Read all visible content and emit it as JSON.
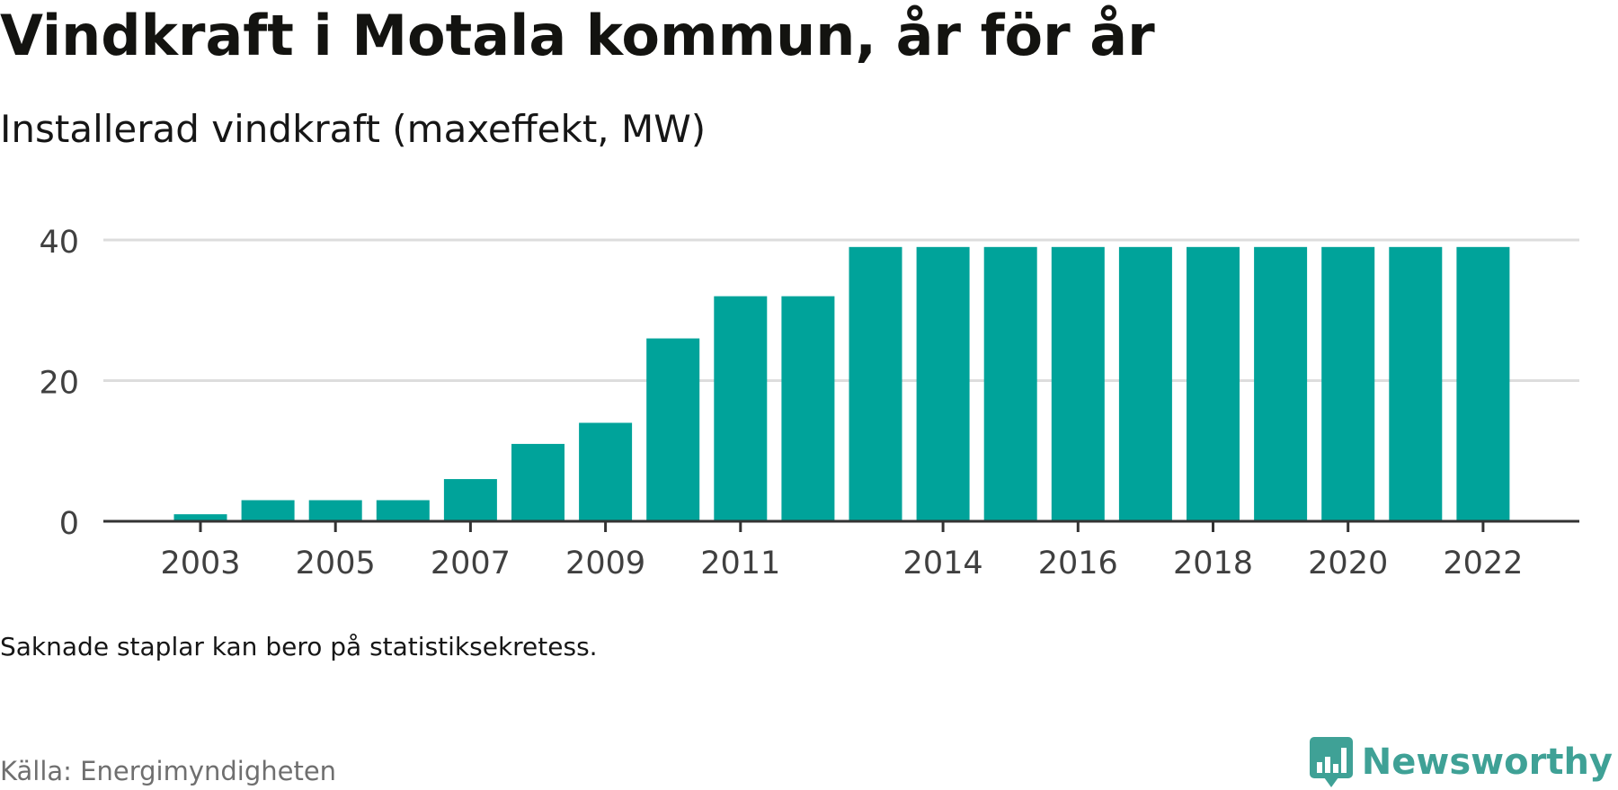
{
  "header": {
    "title": "Vindkraft i Motala kommun, år för år",
    "subtitle": "Installerad vindkraft (maxeffekt, MW)"
  },
  "footer": {
    "note": "Saknade staplar kan bero på statistiksekretess.",
    "source": "Källa: Energimyndigheten",
    "brand": "Newsworthy",
    "brand_icon": "chart-bubble-icon"
  },
  "colors": {
    "bar": "#00a39a",
    "gridline": "#dddddd",
    "axis": "#333333",
    "brand": "#3fa196"
  },
  "chart_data": {
    "type": "bar",
    "categories": [
      "2003",
      "2004",
      "2005",
      "2006",
      "2007",
      "2008",
      "2009",
      "2010",
      "2011",
      "2012",
      "2013",
      "2014",
      "2015",
      "2016",
      "2017",
      "2018",
      "2019",
      "2020",
      "2021",
      "2022"
    ],
    "values": [
      1,
      3,
      3,
      3,
      6,
      11,
      14,
      26,
      32,
      32,
      39,
      39,
      39,
      39,
      39,
      39,
      39,
      39,
      39,
      39
    ],
    "x_tick_labels": [
      "2003",
      "2005",
      "2007",
      "2009",
      "2011",
      "2014",
      "2016",
      "2018",
      "2020",
      "2022"
    ],
    "y_ticks": [
      0,
      20,
      40
    ],
    "ylim": [
      0,
      40
    ],
    "grid": true,
    "title": "",
    "xlabel": "",
    "ylabel": ""
  }
}
